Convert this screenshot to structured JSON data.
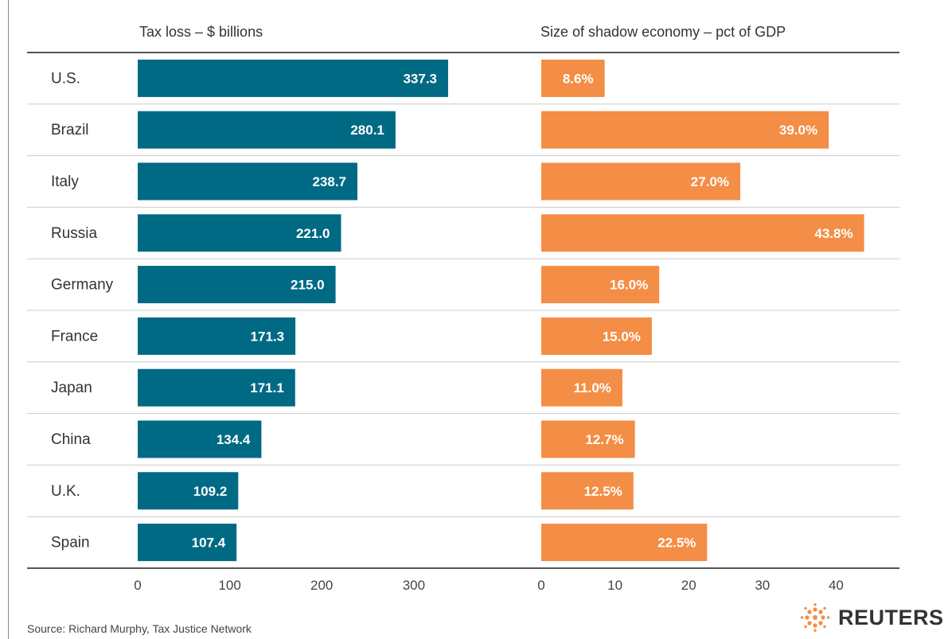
{
  "chart_data": [
    {
      "type": "bar",
      "orientation": "horizontal",
      "title": "Tax loss – $ billions",
      "categories": [
        "U.S.",
        "Brazil",
        "Italy",
        "Russia",
        "Germany",
        "France",
        "Japan",
        "China",
        "U.K.",
        "Spain"
      ],
      "values": [
        337.3,
        280.1,
        238.7,
        221.0,
        215.0,
        171.3,
        171.1,
        134.4,
        109.2,
        107.4
      ],
      "value_labels": [
        "337.3",
        "280.1",
        "238.7",
        "221.0",
        "215.0",
        "171.3",
        "171.1",
        "134.4",
        "109.2",
        "107.4"
      ],
      "ticks": [
        "0",
        "100",
        "200",
        "300"
      ],
      "xlim": [
        0,
        350
      ],
      "color": "#006a84"
    },
    {
      "type": "bar",
      "orientation": "horizontal",
      "title": "Size of shadow economy – pct of GDP",
      "categories": [
        "U.S.",
        "Brazil",
        "Italy",
        "Russia",
        "Germany",
        "France",
        "Japan",
        "China",
        "U.K.",
        "Spain"
      ],
      "values": [
        8.6,
        39.0,
        27.0,
        43.8,
        16.0,
        15.0,
        11.0,
        12.7,
        12.5,
        22.5
      ],
      "value_labels": [
        "8.6%",
        "39.0%",
        "27.0%",
        "43.8%",
        "16.0%",
        "15.0%",
        "11.0%",
        "12.7%",
        "12.5%",
        "22.5%"
      ],
      "ticks": [
        "0",
        "10",
        "20",
        "30",
        "40"
      ],
      "xlim": [
        0,
        45
      ],
      "color": "#f48d45"
    }
  ],
  "source": "Source: Richard Murphy, Tax Justice Network",
  "logo": {
    "text": "REUTERS"
  }
}
